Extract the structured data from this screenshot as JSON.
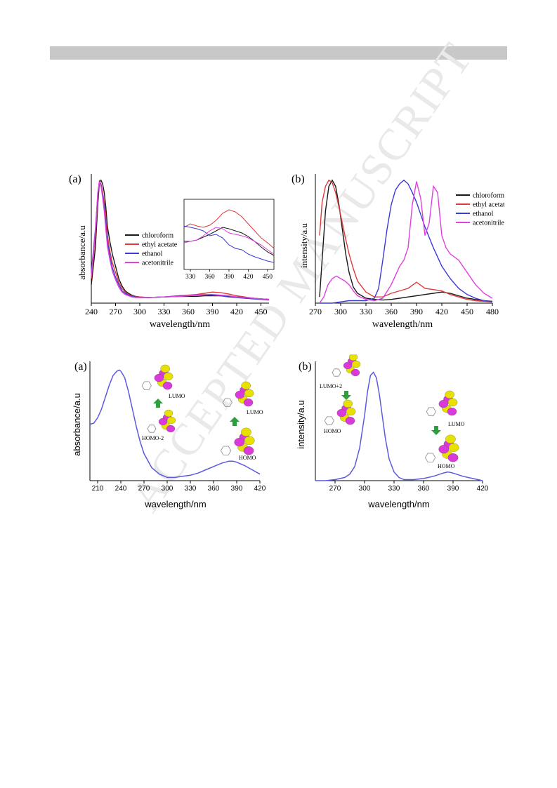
{
  "watermark": "ACCEPTED MANUSCRIPT",
  "chart_data": [
    {
      "type": "line",
      "panel_label": "(a)",
      "xlabel": "wavelength/nm",
      "ylabel": "absorbance/a.u",
      "xlim": [
        240,
        460
      ],
      "xticks": [
        240,
        270,
        300,
        330,
        360,
        390,
        420,
        450
      ],
      "ylim": [
        0,
        1.05
      ],
      "legend_position": "center",
      "series": [
        {
          "name": "chloroform",
          "color": "#1a1a1a",
          "x": [
            240,
            245,
            248,
            250,
            252,
            254,
            256,
            258,
            260,
            263,
            266,
            270,
            274,
            278,
            282,
            286,
            290,
            295,
            300,
            310,
            330,
            350,
            360,
            370,
            380,
            390,
            400,
            410,
            420,
            430,
            440,
            450,
            460
          ],
          "y": [
            0.15,
            0.45,
            0.8,
            0.98,
            1.0,
            0.97,
            0.9,
            0.78,
            0.62,
            0.5,
            0.4,
            0.3,
            0.2,
            0.14,
            0.1,
            0.08,
            0.065,
            0.055,
            0.05,
            0.045,
            0.05,
            0.055,
            0.055,
            0.055,
            0.06,
            0.06,
            0.06,
            0.055,
            0.05,
            0.045,
            0.04,
            0.035,
            0.03
          ]
        },
        {
          "name": "ethyl acetate",
          "color": "#e03a3a",
          "x": [
            240,
            245,
            248,
            250,
            252,
            254,
            256,
            258,
            260,
            263,
            266,
            270,
            274,
            278,
            282,
            286,
            290,
            295,
            300,
            310,
            330,
            350,
            360,
            370,
            380,
            390,
            400,
            410,
            420,
            430,
            440,
            450,
            460
          ],
          "y": [
            0.2,
            0.55,
            0.85,
            0.99,
            0.97,
            0.9,
            0.82,
            0.7,
            0.55,
            0.42,
            0.33,
            0.25,
            0.17,
            0.12,
            0.09,
            0.07,
            0.06,
            0.055,
            0.05,
            0.045,
            0.05,
            0.06,
            0.065,
            0.07,
            0.08,
            0.09,
            0.085,
            0.075,
            0.06,
            0.05,
            0.04,
            0.035,
            0.03
          ]
        },
        {
          "name": "ethanol",
          "color": "#3a3ad8",
          "x": [
            240,
            245,
            248,
            250,
            252,
            254,
            256,
            258,
            260,
            263,
            266,
            270,
            274,
            278,
            282,
            286,
            290,
            295,
            300,
            310,
            330,
            350,
            360,
            370,
            380,
            390,
            400,
            410,
            420,
            430,
            440,
            450,
            460
          ],
          "y": [
            0.25,
            0.6,
            0.88,
            0.99,
            0.96,
            0.88,
            0.78,
            0.64,
            0.5,
            0.38,
            0.29,
            0.21,
            0.15,
            0.1,
            0.08,
            0.065,
            0.055,
            0.05,
            0.045,
            0.045,
            0.05,
            0.06,
            0.06,
            0.065,
            0.07,
            0.065,
            0.06,
            0.05,
            0.045,
            0.04,
            0.035,
            0.03,
            0.025
          ]
        },
        {
          "name": "acetonitrile",
          "color": "#e040e0",
          "x": [
            240,
            245,
            248,
            250,
            252,
            254,
            256,
            258,
            260,
            263,
            266,
            270,
            274,
            278,
            282,
            286,
            290,
            295,
            300,
            310,
            330,
            350,
            360,
            370,
            380,
            390,
            400,
            410,
            420,
            430,
            440,
            450,
            460
          ],
          "y": [
            0.22,
            0.58,
            0.9,
            0.99,
            0.95,
            0.86,
            0.75,
            0.6,
            0.46,
            0.35,
            0.26,
            0.19,
            0.13,
            0.09,
            0.07,
            0.06,
            0.05,
            0.045,
            0.045,
            0.045,
            0.05,
            0.055,
            0.06,
            0.065,
            0.07,
            0.07,
            0.065,
            0.06,
            0.05,
            0.045,
            0.04,
            0.035,
            0.03
          ]
        }
      ],
      "inset": {
        "xlim": [
          320,
          460
        ],
        "xticks": [
          330,
          360,
          390,
          420,
          450
        ],
        "series": [
          {
            "name": "chloroform",
            "color": "#1a1a1a",
            "x": [
              320,
              330,
              340,
              350,
              360,
              370,
              380,
              390,
              400,
              410,
              420,
              430,
              440,
              450,
              460
            ],
            "y": [
              0.4,
              0.4,
              0.42,
              0.46,
              0.5,
              0.55,
              0.6,
              0.58,
              0.55,
              0.52,
              0.47,
              0.4,
              0.32,
              0.25,
              0.2
            ]
          },
          {
            "name": "ethyl acetate",
            "color": "#e03a3a",
            "x": [
              320,
              330,
              340,
              350,
              360,
              370,
              380,
              390,
              400,
              410,
              420,
              430,
              440,
              450,
              460
            ],
            "y": [
              0.6,
              0.65,
              0.62,
              0.6,
              0.63,
              0.7,
              0.8,
              0.85,
              0.82,
              0.75,
              0.65,
              0.55,
              0.45,
              0.38,
              0.3
            ]
          },
          {
            "name": "ethanol",
            "color": "#3a3ad8",
            "x": [
              320,
              330,
              340,
              350,
              360,
              370,
              380,
              390,
              400,
              410,
              420,
              430,
              440,
              450,
              460
            ],
            "y": [
              0.62,
              0.6,
              0.58,
              0.55,
              0.48,
              0.5,
              0.45,
              0.35,
              0.3,
              0.28,
              0.22,
              0.18,
              0.15,
              0.12,
              0.1
            ]
          },
          {
            "name": "acetonitrile",
            "color": "#e040e0",
            "x": [
              320,
              330,
              340,
              350,
              360,
              370,
              380,
              390,
              400,
              410,
              420,
              430,
              440,
              450,
              460
            ],
            "y": [
              0.38,
              0.4,
              0.42,
              0.48,
              0.55,
              0.6,
              0.58,
              0.52,
              0.5,
              0.48,
              0.45,
              0.4,
              0.35,
              0.28,
              0.22
            ]
          }
        ]
      }
    },
    {
      "type": "line",
      "panel_label": "(b)",
      "xlabel": "wavelength/nm",
      "ylabel": "intensity/a.u",
      "xlim": [
        270,
        480
      ],
      "xticks": [
        270,
        300,
        330,
        360,
        390,
        420,
        450,
        480
      ],
      "ylim": [
        0,
        1.05
      ],
      "legend_position": "top-right",
      "series": [
        {
          "name": "chloroform",
          "color": "#1a1a1a",
          "x": [
            275,
            278,
            282,
            286,
            290,
            294,
            298,
            302,
            306,
            310,
            315,
            320,
            330,
            340,
            350,
            360,
            370,
            380,
            390,
            400,
            410,
            420,
            430,
            440,
            450,
            460,
            470,
            480
          ],
          "y": [
            0.05,
            0.35,
            0.75,
            0.95,
            1.0,
            0.95,
            0.8,
            0.6,
            0.4,
            0.25,
            0.13,
            0.08,
            0.04,
            0.03,
            0.025,
            0.03,
            0.04,
            0.05,
            0.06,
            0.07,
            0.08,
            0.09,
            0.08,
            0.06,
            0.04,
            0.03,
            0.02,
            0.015
          ]
        },
        {
          "name": "ethyl acetate",
          "color": "#e03a3a",
          "x": [
            275,
            278,
            282,
            286,
            290,
            294,
            298,
            302,
            306,
            310,
            315,
            320,
            330,
            340,
            350,
            360,
            370,
            380,
            390,
            400,
            410,
            420,
            430,
            440,
            450,
            460,
            470,
            480
          ],
          "y": [
            0.55,
            0.82,
            0.95,
            1.0,
            0.98,
            0.9,
            0.78,
            0.65,
            0.52,
            0.4,
            0.28,
            0.18,
            0.09,
            0.05,
            0.05,
            0.08,
            0.1,
            0.12,
            0.17,
            0.12,
            0.11,
            0.1,
            0.07,
            0.05,
            0.03,
            0.02,
            0.015,
            0.01
          ]
        },
        {
          "name": "ethanol",
          "color": "#3a3ad8",
          "x": [
            275,
            280,
            290,
            300,
            310,
            320,
            330,
            340,
            345,
            350,
            355,
            360,
            365,
            370,
            375,
            380,
            385,
            390,
            395,
            400,
            410,
            420,
            430,
            440,
            450,
            460,
            470,
            480
          ],
          "y": [
            0.0,
            0.0,
            0.0,
            0.01,
            0.02,
            0.02,
            0.02,
            0.04,
            0.12,
            0.35,
            0.6,
            0.8,
            0.92,
            0.97,
            1.0,
            0.97,
            0.9,
            0.82,
            0.72,
            0.62,
            0.45,
            0.3,
            0.2,
            0.12,
            0.07,
            0.04,
            0.02,
            0.01
          ]
        },
        {
          "name": "acetonitrile",
          "color": "#e040e0",
          "x": [
            275,
            280,
            285,
            290,
            295,
            300,
            305,
            310,
            315,
            320,
            330,
            340,
            350,
            360,
            370,
            375,
            380,
            385,
            390,
            395,
            400,
            405,
            410,
            415,
            420,
            425,
            430,
            440,
            450,
            460,
            470,
            480
          ],
          "y": [
            0.0,
            0.05,
            0.15,
            0.2,
            0.22,
            0.2,
            0.18,
            0.15,
            0.1,
            0.06,
            0.03,
            0.02,
            0.04,
            0.15,
            0.3,
            0.35,
            0.45,
            0.8,
            0.99,
            0.85,
            0.55,
            0.65,
            0.95,
            0.9,
            0.55,
            0.45,
            0.4,
            0.35,
            0.25,
            0.15,
            0.08,
            0.04
          ]
        }
      ]
    },
    {
      "type": "line",
      "panel_label": "(a)",
      "xlabel": "wavelength/nm",
      "ylabel": "absorbance/a.u",
      "xlim": [
        200,
        420
      ],
      "xticks": [
        210,
        240,
        270,
        300,
        330,
        360,
        390,
        420
      ],
      "ylim": [
        0,
        1.1
      ],
      "orbital_labels": [
        "LUMO",
        "HOMO-2",
        "LUMO",
        "HOMO"
      ],
      "series": [
        {
          "name": "",
          "color": "#5a5ae0",
          "x": [
            200,
            205,
            210,
            215,
            220,
            225,
            230,
            235,
            238,
            240,
            245,
            250,
            255,
            260,
            265,
            270,
            280,
            290,
            300,
            310,
            320,
            330,
            340,
            350,
            360,
            370,
            380,
            385,
            390,
            400,
            410,
            420
          ],
          "y": [
            0.52,
            0.53,
            0.58,
            0.66,
            0.77,
            0.88,
            0.97,
            1.01,
            1.02,
            1.01,
            0.95,
            0.82,
            0.66,
            0.5,
            0.36,
            0.25,
            0.12,
            0.06,
            0.03,
            0.03,
            0.04,
            0.05,
            0.07,
            0.1,
            0.13,
            0.16,
            0.18,
            0.18,
            0.17,
            0.14,
            0.1,
            0.06
          ]
        }
      ]
    },
    {
      "type": "line",
      "panel_label": "(b)",
      "xlabel": "wavelength/nm",
      "ylabel": "intensity/a.u",
      "xlim": [
        250,
        420
      ],
      "xticks": [
        270,
        300,
        330,
        360,
        390,
        420
      ],
      "ylim": [
        0,
        1.1
      ],
      "orbital_labels": [
        "LUMO+2",
        "HOMO",
        "LUMO",
        "HOMO"
      ],
      "series": [
        {
          "name": "",
          "color": "#5a5ae0",
          "x": [
            250,
            260,
            270,
            280,
            285,
            290,
            295,
            300,
            303,
            306,
            309,
            312,
            315,
            318,
            321,
            325,
            330,
            335,
            340,
            350,
            360,
            370,
            380,
            385,
            390,
            400,
            410,
            420
          ],
          "y": [
            0.0,
            0.0,
            0.01,
            0.03,
            0.06,
            0.13,
            0.3,
            0.6,
            0.82,
            0.97,
            1.0,
            0.95,
            0.8,
            0.6,
            0.4,
            0.2,
            0.08,
            0.03,
            0.01,
            0.01,
            0.02,
            0.04,
            0.07,
            0.08,
            0.07,
            0.04,
            0.02,
            0.0
          ]
        }
      ]
    }
  ]
}
